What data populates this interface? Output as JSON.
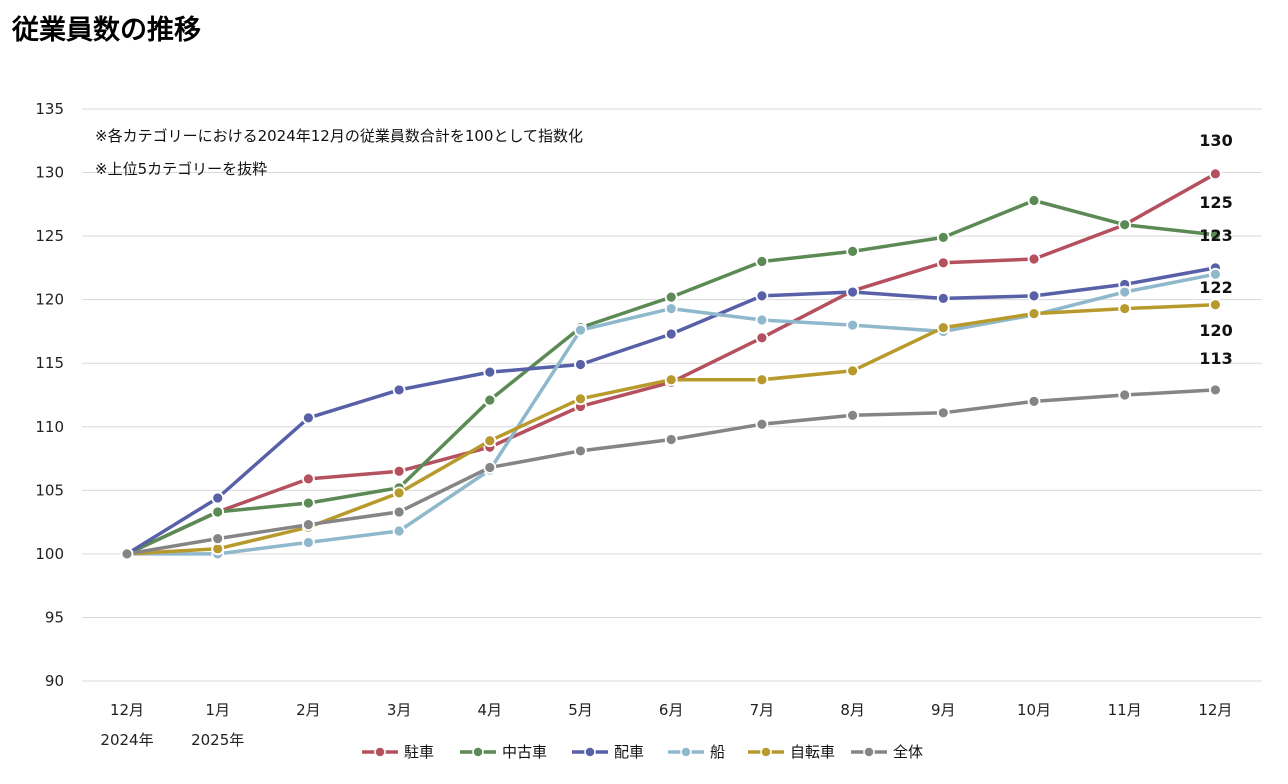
{
  "title": "従業員数の推移",
  "chart_data": {
    "type": "line",
    "categories": [
      "12月",
      "1月",
      "2月",
      "3月",
      "4月",
      "5月",
      "6月",
      "7月",
      "8月",
      "9月",
      "10月",
      "11月",
      "12月"
    ],
    "year_labels": [
      {
        "index": 0,
        "label": "2024年"
      },
      {
        "index": 1,
        "label": "2025年"
      }
    ],
    "ylim": [
      90,
      135
    ],
    "yticks": [
      90,
      95,
      100,
      105,
      110,
      115,
      120,
      125,
      130,
      135
    ],
    "grid": "horizontal",
    "legend_position": "bottom",
    "notes": [
      "※各カテゴリーにおける2024年12月の従業員数合計を100として指数化",
      "※上位5カテゴリーを抜粋"
    ],
    "series": [
      {
        "name": "駐車",
        "color": "#b5505f",
        "values": [
          100,
          103.3,
          105.9,
          106.5,
          108.4,
          111.6,
          113.5,
          117.0,
          120.7,
          122.9,
          123.2,
          125.9,
          129.9
        ]
      },
      {
        "name": "中古車",
        "color": "#5b8a54",
        "values": [
          100,
          103.3,
          104.0,
          105.2,
          112.1,
          117.8,
          120.2,
          123.0,
          123.8,
          124.9,
          127.8,
          125.9,
          125.1
        ]
      },
      {
        "name": "配車",
        "color": "#5860a8",
        "values": [
          100,
          104.4,
          110.7,
          112.9,
          114.3,
          114.9,
          117.3,
          120.3,
          120.6,
          120.1,
          120.3,
          121.2,
          122.5
        ]
      },
      {
        "name": "船",
        "color": "#8fb8cc",
        "values": [
          100,
          100.0,
          100.9,
          101.8,
          106.6,
          117.6,
          119.3,
          118.4,
          118.0,
          117.5,
          118.8,
          120.6,
          122.0
        ]
      },
      {
        "name": "自転車",
        "color": "#b89a2c",
        "values": [
          100,
          100.4,
          102.1,
          104.8,
          108.9,
          112.2,
          113.7,
          113.7,
          114.4,
          117.8,
          118.9,
          119.3,
          119.6
        ]
      },
      {
        "name": "全体",
        "color": "#858585",
        "values": [
          100,
          101.2,
          102.3,
          103.3,
          106.8,
          108.1,
          109.0,
          110.2,
          110.9,
          111.1,
          112.0,
          112.5,
          112.9
        ]
      }
    ],
    "end_labels": [
      "130",
      "125",
      "123",
      "122",
      "120",
      "113"
    ]
  }
}
